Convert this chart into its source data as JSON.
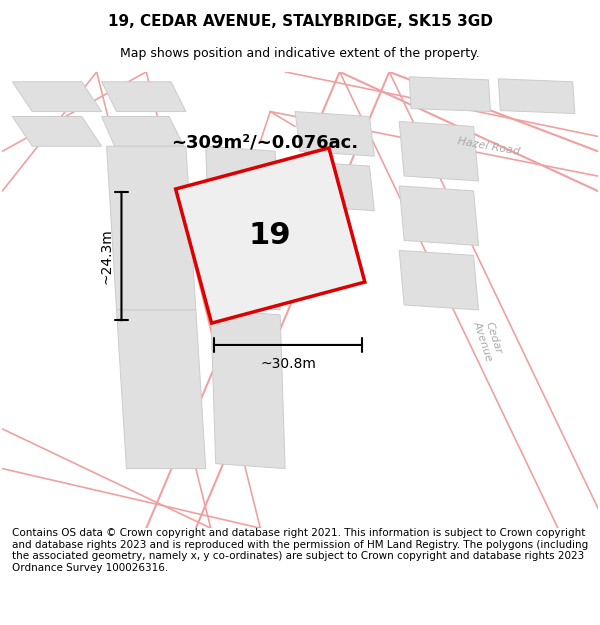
{
  "title": "19, CEDAR AVENUE, STALYBRIDGE, SK15 3GD",
  "subtitle": "Map shows position and indicative extent of the property.",
  "footer": "Contains OS data © Crown copyright and database right 2021. This information is subject to Crown copyright and database rights 2023 and is reproduced with the permission of HM Land Registry. The polygons (including the associated geometry, namely x, y co-ordinates) are subject to Crown copyright and database rights 2023 Ordnance Survey 100026316.",
  "area_text": "~309m²/~0.076ac.",
  "width_label": "~30.8m",
  "height_label": "~24.3m",
  "number_label": "19",
  "bg_color": "#ffffff",
  "map_bg": "#ffffff",
  "road_line_color": "#f0a0a0",
  "block_color": "#e0e0e0",
  "block_edge": "#cccccc",
  "plot_outline_color": "#dd0000",
  "dim_color": "#000000",
  "title_fontsize": 11,
  "subtitle_fontsize": 9,
  "footer_fontsize": 7.5,
  "label_fontsize": 10,
  "number_fontsize": 22,
  "area_fontsize": 13,
  "road_label_color": "#aaaaaa",
  "road_label_size": 8
}
